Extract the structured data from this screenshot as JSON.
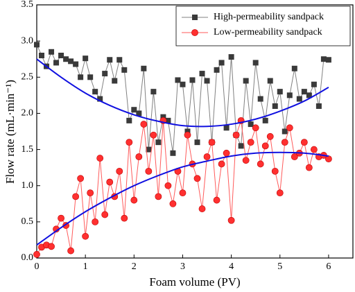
{
  "chart_data": {
    "type": "line",
    "x_label": "Foam volume (PV)",
    "y_label": "Flow rate (mL·min⁻¹)",
    "xlim": [
      0,
      6.5
    ],
    "ylim": [
      0,
      3.5
    ],
    "xticks": [
      0,
      1,
      2,
      3,
      4,
      5,
      6
    ],
    "yticks": [
      {
        "value": 0,
        "label": "0.0"
      },
      {
        "value": 0.5,
        "label": "0.5"
      },
      {
        "value": 1,
        "label": "1.0"
      },
      {
        "value": 1.5,
        "label": "1.5"
      },
      {
        "value": 2,
        "label": "2.0"
      },
      {
        "value": 2.5,
        "label": "2.5"
      },
      {
        "value": 3,
        "label": "3.0"
      },
      {
        "value": 3.5,
        "label": "3.5"
      }
    ],
    "legend": "upper right",
    "x": [
      0,
      0.1,
      0.2,
      0.3,
      0.4,
      0.5,
      0.6,
      0.7,
      0.8,
      0.9,
      1,
      1.1,
      1.2,
      1.3,
      1.4,
      1.5,
      1.6,
      1.7,
      1.8,
      1.9,
      2,
      2.1,
      2.2,
      2.3,
      2.4,
      2.5,
      2.6,
      2.7,
      2.8,
      2.9,
      3,
      3.1,
      3.2,
      3.3,
      3.4,
      3.5,
      3.6,
      3.7,
      3.8,
      3.9,
      4,
      4.1,
      4.2,
      4.3,
      4.4,
      4.5,
      4.6,
      4.7,
      4.8,
      4.9,
      5,
      5.1,
      5.2,
      5.3,
      5.4,
      5.5,
      5.6,
      5.7,
      5.8,
      5.9,
      6
    ],
    "series": [
      {
        "name": "High-permeability sandpack",
        "color": "#3a3a3a",
        "line_color": "#808080",
        "marker": "square",
        "values": [
          2.95,
          2.8,
          2.65,
          2.85,
          2.7,
          2.8,
          2.75,
          2.72,
          2.68,
          2.5,
          2.76,
          2.5,
          2.3,
          2.2,
          2.55,
          2.74,
          2.45,
          2.74,
          2.6,
          1.9,
          2.05,
          2.0,
          2.62,
          1.5,
          2.3,
          1.6,
          1.95,
          1.9,
          1.45,
          2.46,
          2.4,
          1.75,
          2.46,
          1.6,
          2.55,
          2.45,
          1.6,
          2.6,
          2.7,
          1.8,
          2.78,
          1.7,
          1.55,
          2.45,
          1.85,
          2.7,
          2.2,
          1.9,
          2.45,
          2.1,
          2.3,
          1.75,
          2.25,
          2.62,
          2.2,
          2.3,
          2.25,
          2.4,
          2.1,
          2.75,
          2.74
        ]
      },
      {
        "name": "Low-permeability sandpack",
        "color": "#ff3030",
        "line_color": "#ff5a5a",
        "marker": "circle",
        "values": [
          0.05,
          0.15,
          0.18,
          0.16,
          0.4,
          0.55,
          0.45,
          0.1,
          0.85,
          1.1,
          0.3,
          0.9,
          0.5,
          1.38,
          0.6,
          1.05,
          0.85,
          1.2,
          0.55,
          1.6,
          0.8,
          1.4,
          1.85,
          1.2,
          1.7,
          0.85,
          1.9,
          1.0,
          0.75,
          1.2,
          0.9,
          1.7,
          1.3,
          1.1,
          0.68,
          1.4,
          1.6,
          0.8,
          1.3,
          1.45,
          0.52,
          1.7,
          1.9,
          1.35,
          1.6,
          1.8,
          1.3,
          1.55,
          1.68,
          1.2,
          0.9,
          1.6,
          1.8,
          1.4,
          1.45,
          1.6,
          1.25,
          1.5,
          1.4,
          1.42,
          1.37
        ]
      }
    ],
    "fits": [
      {
        "color": "#1010e0",
        "x": [
          0,
          0.5,
          1,
          1.5,
          2,
          2.5,
          3,
          3.5,
          4,
          4.5,
          5,
          5.5,
          6
        ],
        "values": [
          2.75,
          2.5,
          2.28,
          2.11,
          1.98,
          1.89,
          1.83,
          1.82,
          1.85,
          1.92,
          2.03,
          2.17,
          2.36
        ]
      },
      {
        "color": "#1010e0",
        "x": [
          0,
          0.5,
          1,
          1.5,
          2,
          2.5,
          3,
          3.5,
          4,
          4.5,
          5,
          5.5,
          6
        ],
        "values": [
          0.18,
          0.42,
          0.64,
          0.83,
          1.0,
          1.14,
          1.26,
          1.34,
          1.41,
          1.45,
          1.46,
          1.45,
          1.41
        ]
      }
    ]
  }
}
